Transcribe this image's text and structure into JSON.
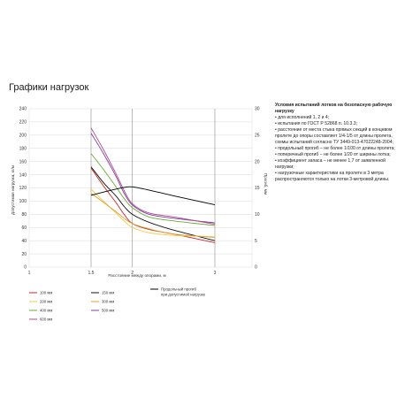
{
  "page": {
    "heading": "Графики нагрузок"
  },
  "notes": {
    "title": "Условия испытаний лотков на безопасную рабочую нагрузку",
    "items": [
      "• для исполнений 1, 2 и 4;",
      "• испытания по ГОСТ Р 52868 п. 10.3.3;",
      "• расстояние от места стыка прямых секций в концевом пролете до опоры составляет 1/4-1/5 от длины пролета, схемы испытаний согласно ТУ 3449-013-47022248-2004;",
      "• продольный прогиб – не более 1/100 от длины пролета;",
      "• поперечный прогиб – не более 1/20 от ширины лотка;",
      "• коэффициент запаса – не менее 1,7 от заявленной нагрузки;",
      "• нагрузочные характеристики на пролете в 3 метра распространяются только на лотки 3-метровой длины."
    ]
  },
  "chart_data": {
    "type": "line",
    "xlabel": "Расстояние между опорами, м",
    "ylabel": "Допустимая нагрузка, кг/м",
    "y2label": "Прогиб, мм",
    "xlim": [
      1,
      3
    ],
    "ylim": [
      0,
      240
    ],
    "y2lim": [
      0,
      30
    ],
    "xticks": [
      "1",
      "1.5",
      "2",
      "3"
    ],
    "xtick_values": [
      1,
      1.5,
      2,
      3
    ],
    "yticks": [
      "0",
      "20",
      "40",
      "60",
      "80",
      "100",
      "120",
      "140",
      "160",
      "180",
      "200",
      "220",
      "240"
    ],
    "y2ticks": [
      "0",
      "5",
      "10",
      "15",
      "20",
      "25",
      "30"
    ],
    "grid": true,
    "legend_position": "bottom-left",
    "series": [
      {
        "name": "100 мм",
        "color": "#c62828",
        "axis": "left",
        "points": [
          [
            1.5,
            150
          ],
          [
            1.65,
            123
          ],
          [
            1.8,
            98
          ],
          [
            1.9,
            80
          ],
          [
            2,
            66
          ],
          [
            2.2,
            57
          ],
          [
            2.5,
            50
          ],
          [
            3,
            37
          ]
        ]
      },
      {
        "name": "150 мм",
        "color": "#111111",
        "axis": "left",
        "points": [
          [
            1.5,
            152
          ],
          [
            1.65,
            128
          ],
          [
            1.8,
            108
          ],
          [
            1.9,
            92
          ],
          [
            2,
            80
          ],
          [
            2.2,
            68
          ],
          [
            2.5,
            56
          ],
          [
            3,
            40
          ]
        ]
      },
      {
        "name": "200 мм",
        "color": "#f2c94c",
        "axis": "left",
        "points": [
          [
            1.5,
            118
          ],
          [
            1.65,
            100
          ],
          [
            1.8,
            82
          ],
          [
            1.9,
            70
          ],
          [
            2,
            60
          ],
          [
            2.2,
            52
          ],
          [
            2.5,
            48
          ],
          [
            3,
            46
          ]
        ]
      },
      {
        "name": "300 мм",
        "color": "#e0a030",
        "axis": "left",
        "points": [
          [
            1.5,
            112
          ],
          [
            1.65,
            98
          ],
          [
            1.8,
            84
          ],
          [
            1.9,
            74
          ],
          [
            2,
            66
          ],
          [
            2.2,
            58
          ],
          [
            2.5,
            50
          ],
          [
            3,
            45
          ]
        ]
      },
      {
        "name": "400 мм",
        "color": "#6aaa3a",
        "axis": "left",
        "points": [
          [
            1.5,
            172
          ],
          [
            1.65,
            148
          ],
          [
            1.8,
            122
          ],
          [
            1.9,
            104
          ],
          [
            2,
            90
          ],
          [
            2.2,
            76
          ],
          [
            2.5,
            70
          ],
          [
            3,
            63
          ]
        ]
      },
      {
        "name": "500 мм",
        "color": "#7b3fa0",
        "axis": "left",
        "points": [
          [
            1.5,
            203
          ],
          [
            1.65,
            172
          ],
          [
            1.8,
            138
          ],
          [
            1.9,
            112
          ],
          [
            2,
            94
          ],
          [
            2.2,
            80
          ],
          [
            2.5,
            74
          ],
          [
            3,
            67
          ]
        ]
      },
      {
        "name": "600 мм",
        "color": "#b04a8a",
        "axis": "left",
        "points": [
          [
            1.5,
            211
          ],
          [
            1.65,
            178
          ],
          [
            1.8,
            142
          ],
          [
            1.9,
            116
          ],
          [
            2,
            96
          ],
          [
            2.2,
            82
          ],
          [
            2.5,
            76
          ],
          [
            3,
            65
          ]
        ]
      },
      {
        "name": "Продольный прогиб при допустимой нагрузке",
        "color": "#000000",
        "axis": "right",
        "points": [
          [
            1.5,
            13.6
          ],
          [
            1.7,
            14.4
          ],
          [
            1.9,
            15.1
          ],
          [
            2,
            15.2
          ],
          [
            2.2,
            14.6
          ],
          [
            2.5,
            13.5
          ],
          [
            3,
            11.8
          ]
        ]
      }
    ]
  }
}
